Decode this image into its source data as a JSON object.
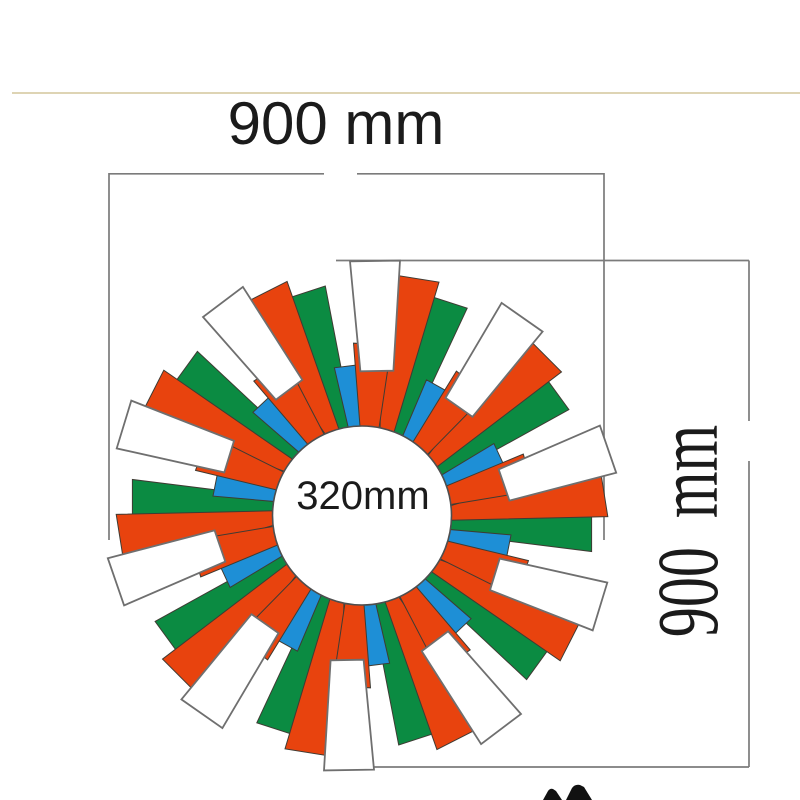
{
  "diagram": {
    "type": "product-dimension-drawing",
    "subject": "layered multicolor pinwheel windmill",
    "labels": {
      "width": "900 mm",
      "height": "900 mm",
      "core_diameter": "320mm"
    },
    "dimensions_mm": {
      "outer_width": 900,
      "outer_height": 900,
      "core_diameter": 320
    },
    "colors": {
      "background": "#ffffff",
      "red": "#e8430e",
      "green": "#0b8b42",
      "blue": "#1e8fd6",
      "white_blade": "#ffffff",
      "blade_outline": "#3e3b33",
      "white_blade_outline": "#6f6f6f",
      "hub_outline": "#4e4e4e",
      "dimension_line": "#7b7b7b",
      "label_text": "#1b1b1b",
      "accent_line": "#d3c59c",
      "corner_mark": "#111111"
    },
    "wheel": {
      "core_label": "320mm",
      "blade_layers": [
        {
          "name": "green-blade",
          "color_key": "green",
          "count": 10,
          "start_angle_deg": 22,
          "inner_radius": 85,
          "outer_radius": 230,
          "inner_width": 14,
          "outer_width": 50,
          "twist_deg": -4
        },
        {
          "name": "blue-blade",
          "color_key": "blue",
          "count": 10,
          "start_angle_deg": 31,
          "inner_radius": 84,
          "outer_radius": 150,
          "inner_width": 13,
          "outer_width": 27,
          "twist_deg": -2
        },
        {
          "name": "red-long-blade",
          "color_key": "red",
          "count": 10,
          "start_angle_deg": 13,
          "inner_radius": 87,
          "outer_radius": 243,
          "inner_width": 14,
          "outer_width": 56,
          "twist_deg": -4
        },
        {
          "name": "red-short-blade",
          "color_key": "red",
          "count": 10,
          "start_angle_deg": 4,
          "inner_radius": 84,
          "outer_radius": 172,
          "inner_width": 18,
          "outer_width": 38,
          "twist_deg": -2
        },
        {
          "name": "white-blade",
          "color_key": "white_blade",
          "count": 10,
          "start_angle_deg": 4,
          "inner_radius": 145,
          "outer_radius": 255,
          "inner_width": 33,
          "outer_width": 50,
          "twist_deg": -5
        }
      ]
    }
  }
}
